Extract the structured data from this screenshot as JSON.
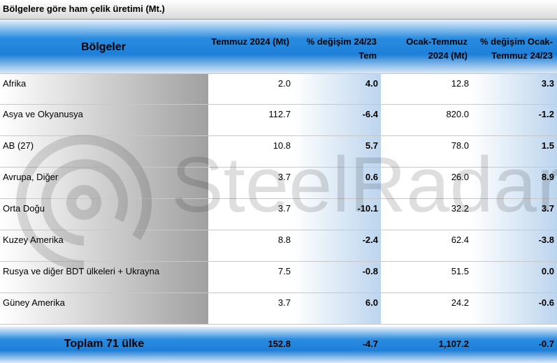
{
  "title": "Bölgelere göre ham çelik üretimi (Mt.)",
  "watermark": "SteelRadar",
  "table": {
    "header": [
      "Bölgeler",
      "Temmuz 2024 (Mt)",
      "% değişim 24/23 Tem",
      "Ocak-Temmuz 2024 (Mt)",
      "% değişim Ocak-Temmuz 24/23"
    ],
    "rows": [
      [
        "Afrika",
        "2.0",
        "4.0",
        "12.8",
        "3.3"
      ],
      [
        "Asya ve Okyanusya",
        "112.7",
        "-6.4",
        "820.0",
        "-1.2"
      ],
      [
        "AB (27)",
        "10.8",
        "5.7",
        "78.0",
        "1.5"
      ],
      [
        "Avrupa, Diğer",
        "3.7",
        "0.6",
        "26.0",
        "8.9"
      ],
      [
        "Orta Doğu",
        "3.7",
        "-10.1",
        "32.2",
        "3.7"
      ],
      [
        "Kuzey Amerika",
        "8.8",
        "-2.4",
        "62.4",
        "-3.8"
      ],
      [
        "Rusya ve diğer BDT ülkeleri + Ukrayna",
        "7.5",
        "-0.8",
        "51.5",
        "0.0"
      ],
      [
        "Güney Amerika",
        "3.7",
        "6.0",
        "24.2",
        "-0.6"
      ]
    ],
    "total": [
      "Toplam 71 ülke",
      "152.8",
      "-4.7",
      "1,107.2",
      "-0.7"
    ]
  }
}
